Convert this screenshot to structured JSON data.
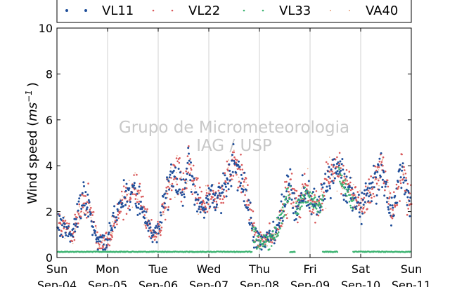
{
  "chart_data": {
    "type": "scatter",
    "title": "",
    "ylabel": "Wind speed ($ms^{-1}$)",
    "ylabel_plain": "Wind speed (",
    "ylabel_unit": "ms",
    "ylabel_exp": "−1",
    "ylabel_close": ")",
    "ylim": [
      0,
      10
    ],
    "yticks": [
      "0",
      "2",
      "4",
      "6",
      "8",
      "10"
    ],
    "xlim_days": [
      0,
      7
    ],
    "xticks": [
      {
        "day": "Sun",
        "date": "Sep-04"
      },
      {
        "day": "Mon",
        "date": "Sep-05"
      },
      {
        "day": "Tue",
        "date": "Sep-06"
      },
      {
        "day": "Wed",
        "date": "Sep-07"
      },
      {
        "day": "Thu",
        "date": "Sep-08"
      },
      {
        "day": "Fri",
        "date": "Sep-09"
      },
      {
        "day": "Sat",
        "date": "Sep-10"
      },
      {
        "day": "Sun",
        "date": "Sep-11"
      }
    ],
    "grid": "vertical",
    "legend_position": "top",
    "watermark": [
      "Grupo de Micrometeorologia",
      "IAG / USP"
    ],
    "series": [
      {
        "name": "VL11",
        "color": "#1f4e9a"
      },
      {
        "name": "VL22",
        "color": "#d9595b"
      },
      {
        "name": "VL33",
        "color": "#3cb371"
      },
      {
        "name": "VA40",
        "color": "#e8a07a"
      }
    ],
    "profile_x": [
      0,
      0.1,
      0.2,
      0.3,
      0.4,
      0.5,
      0.6,
      0.7,
      0.8,
      0.9,
      1.0,
      1.1,
      1.2,
      1.3,
      1.4,
      1.5,
      1.6,
      1.7,
      1.8,
      1.9,
      2.0,
      2.1,
      2.2,
      2.3,
      2.4,
      2.5,
      2.6,
      2.7,
      2.8,
      2.9,
      3.0,
      3.1,
      3.2,
      3.3,
      3.4,
      3.5,
      3.6,
      3.7,
      3.8,
      3.9,
      4.0,
      4.1,
      4.2,
      4.3,
      4.4,
      4.5,
      4.6,
      4.7,
      4.8,
      4.9,
      5.0,
      5.1,
      5.2,
      5.3,
      5.4,
      5.5,
      5.6,
      5.7,
      5.8,
      5.9,
      6.0,
      6.1,
      6.2,
      6.3,
      6.4,
      6.5,
      6.6,
      6.7,
      6.8,
      6.9,
      7.0
    ],
    "profile_y": [
      1.6,
      1.4,
      1.1,
      0.8,
      2.0,
      2.5,
      2.3,
      1.5,
      0.6,
      0.6,
      0.7,
      1.5,
      2.0,
      2.4,
      2.8,
      3.0,
      2.6,
      2.0,
      1.3,
      1.0,
      1.2,
      2.2,
      3.0,
      3.6,
      3.4,
      2.8,
      4.0,
      3.0,
      2.3,
      2.2,
      2.5,
      2.7,
      2.6,
      3.0,
      3.8,
      4.2,
      3.6,
      3.0,
      2.0,
      0.8,
      0.7,
      0.7,
      0.9,
      1.0,
      1.8,
      2.5,
      3.0,
      2.2,
      2.5,
      3.0,
      2.6,
      2.3,
      2.4,
      3.2,
      3.5,
      4.0,
      3.6,
      3.2,
      2.7,
      2.5,
      2.2,
      2.6,
      2.8,
      3.5,
      4.0,
      3.0,
      2.0,
      2.6,
      4.0,
      2.6,
      2.3
    ],
    "vl33_baseline": 0.25,
    "vl33_active_days": [
      [
        3.85,
        4.6
      ],
      [
        4.7,
        5.25
      ],
      [
        5.55,
        5.85
      ]
    ]
  }
}
